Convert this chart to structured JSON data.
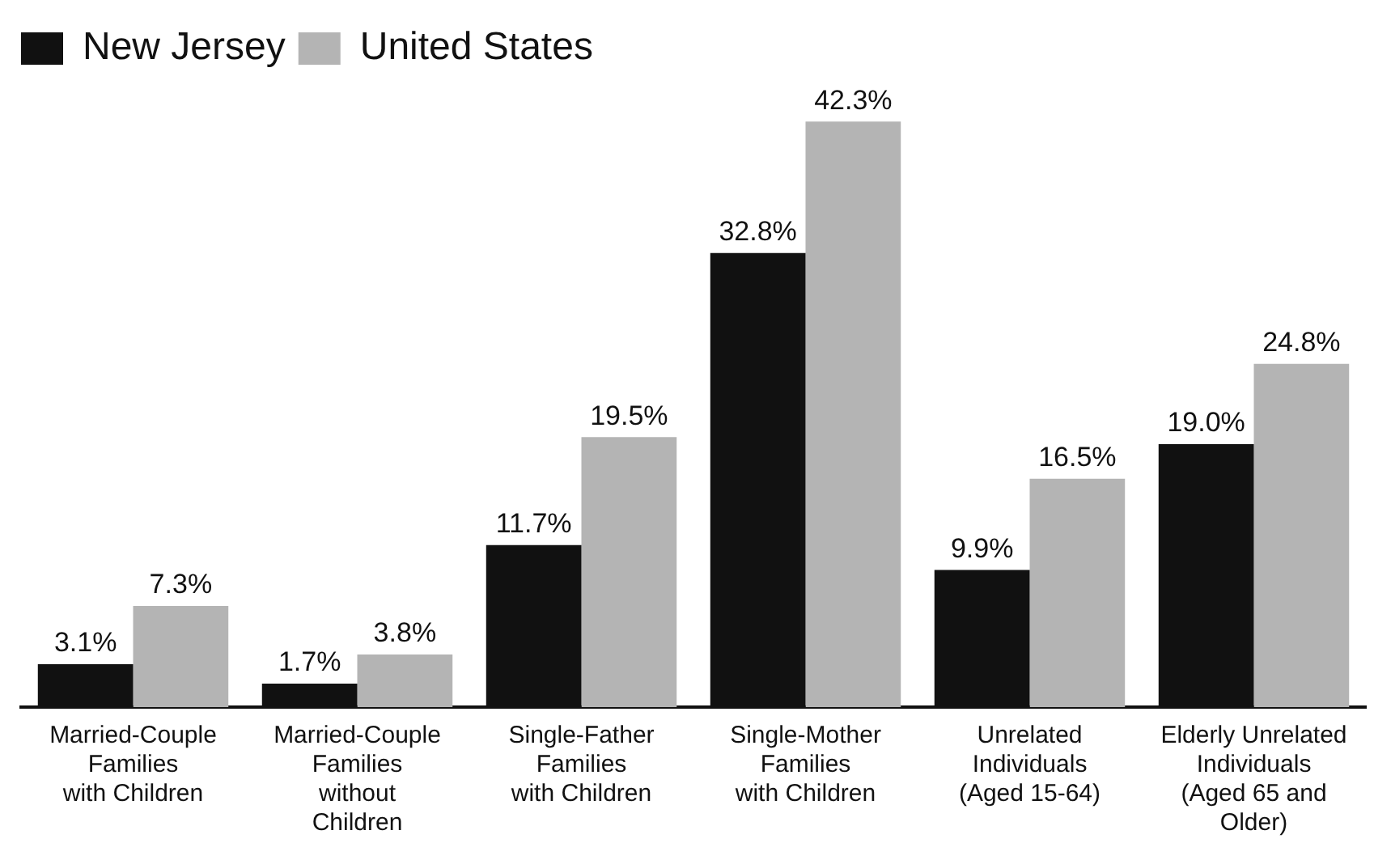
{
  "chart_data": {
    "type": "bar",
    "categories": [
      "Married-Couple\nFamilies\nwith Children",
      "Married-Couple\nFamilies\nwithout\nChildren",
      "Single-Father\nFamilies\nwith Children",
      "Single-Mother\nFamilies\nwith Children",
      "Unrelated\nIndividuals\n(Aged 15-64)",
      "Elderly Unrelated\nIndividuals\n(Aged 65 and\nOlder)"
    ],
    "series": [
      {
        "name": "New Jersey",
        "color": "#111111",
        "values": [
          3.1,
          1.7,
          11.7,
          32.8,
          9.9,
          19.0
        ],
        "value_labels": [
          "3.1%",
          "1.7%",
          "11.7%",
          "32.8%",
          "9.9%",
          "19.0%"
        ]
      },
      {
        "name": "United States",
        "color": "#b4b4b4",
        "values": [
          7.3,
          3.8,
          19.5,
          42.3,
          16.5,
          24.8
        ],
        "value_labels": [
          "7.3%",
          "3.8%",
          "19.5%",
          "42.3%",
          "16.5%",
          "24.8%"
        ]
      }
    ],
    "legend": "top left",
    "grid": false
  }
}
